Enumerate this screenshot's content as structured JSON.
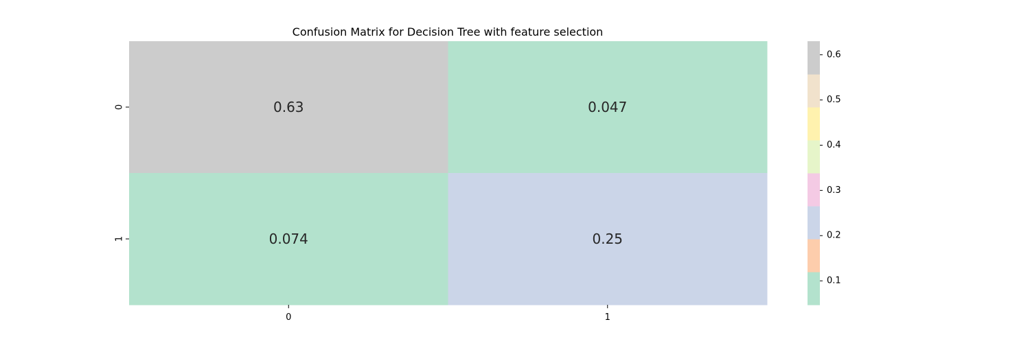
{
  "chart_data": {
    "type": "heatmap",
    "title": "Confusion Matrix for Decision Tree with feature selection",
    "xlabel": "",
    "ylabel": "",
    "x_categories": [
      "0",
      "1"
    ],
    "y_categories": [
      "0",
      "1"
    ],
    "values": [
      [
        0.63,
        0.047
      ],
      [
        0.074,
        0.25
      ]
    ],
    "cell_labels": [
      [
        "0.63",
        "0.047"
      ],
      [
        "0.074",
        "0.25"
      ]
    ],
    "colormap": "Pastel2",
    "colorbar": {
      "range": [
        0.047,
        0.63
      ],
      "ticks": [
        0.1,
        0.2,
        0.3,
        0.4,
        0.5,
        0.6
      ],
      "tick_labels": [
        "0.1",
        "0.2",
        "0.3",
        "0.4",
        "0.5",
        "0.6"
      ],
      "colors": [
        "#b3e2cd",
        "#fdcdac",
        "#cbd5e8",
        "#f4cae4",
        "#e6f5c9",
        "#fff2ae",
        "#f1e2cc",
        "#cccccc"
      ]
    }
  }
}
